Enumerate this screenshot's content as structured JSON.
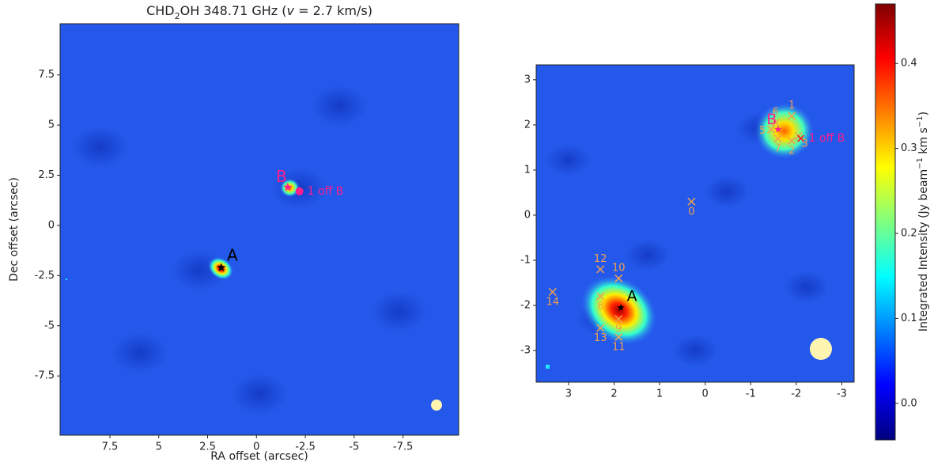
{
  "chart_data": [
    {
      "type": "image",
      "title_parts": [
        "CHD",
        "2",
        "OH 348.71 GHz (",
        "v",
        " = 2.7 km/s)"
      ],
      "xlabel": "RA offset (arcsec)",
      "ylabel": "Dec offset (arcsec)",
      "xlim": [
        10.05,
        -10.35
      ],
      "ylim": [
        -10.45,
        10.05
      ],
      "xticks": [
        7.5,
        5,
        2.5,
        0,
        -2.5,
        -5,
        -7.5
      ],
      "yticks": [
        -7.5,
        -5,
        -2.5,
        0,
        2.5,
        5,
        7.5
      ],
      "sources": [
        {
          "name": "A",
          "x": 1.8,
          "y": -2.1,
          "color": "#000000"
        },
        {
          "name": "B",
          "x": -1.6,
          "y": 1.9,
          "color": "#ff1e8c"
        }
      ],
      "offsource": {
        "label": "1 off B",
        "x": -2.2,
        "y": 1.7,
        "color": "#ff1e8c"
      }
    },
    {
      "type": "image",
      "xlim": [
        3.71,
        -3.27
      ],
      "ylim": [
        -3.7,
        3.33
      ],
      "xticks": [
        3,
        2,
        1,
        0,
        -1,
        -2,
        -3
      ],
      "yticks": [
        -3,
        -2,
        -1,
        0,
        1,
        2,
        3
      ],
      "sources": [
        {
          "name": "A",
          "x": 1.85,
          "y": -2.05,
          "color": "#000000"
        },
        {
          "name": "B",
          "x": -1.6,
          "y": 1.9,
          "color": "#ff1e8c"
        }
      ],
      "offsource": {
        "label": "1 off B",
        "x": -2.1,
        "y": 1.7,
        "color": "#ff1e8c"
      },
      "marker_color": "#f0a050",
      "markers": [
        {
          "label": "0",
          "x": 0.3,
          "y": 0.3
        },
        {
          "label": "1",
          "x": -1.9,
          "y": 2.2
        },
        {
          "label": "2",
          "x": -1.9,
          "y": 1.65
        },
        {
          "label": "3",
          "x": -2.05,
          "y": 1.75
        },
        {
          "label": "5",
          "x": -1.45,
          "y": 1.9
        },
        {
          "label": "6",
          "x": -1.55,
          "y": 2.05
        },
        {
          "label": "7",
          "x": -1.6,
          "y": 1.7
        },
        {
          "label": "8",
          "x": 2.3,
          "y": -1.8
        },
        {
          "label": "9",
          "x": 1.9,
          "y": -2.3
        },
        {
          "label": "10",
          "x": 1.9,
          "y": -1.4
        },
        {
          "label": "11",
          "x": 1.9,
          "y": -2.7
        },
        {
          "label": "12",
          "x": 2.3,
          "y": -1.2
        },
        {
          "label": "13",
          "x": 2.3,
          "y": -2.5
        },
        {
          "label": "14",
          "x": 3.35,
          "y": -1.7
        }
      ],
      "colormap": "jet",
      "clim": [
        -0.043,
        0.47
      ],
      "cticks": [
        {
          "value": 0,
          "label": "0.0"
        },
        0.1,
        0.2,
        0.3,
        0.4
      ],
      "clabel_parts": [
        "Integrated Intensity (Jy beam",
        "−1",
        " km s",
        "−1",
        ")"
      ]
    }
  ]
}
